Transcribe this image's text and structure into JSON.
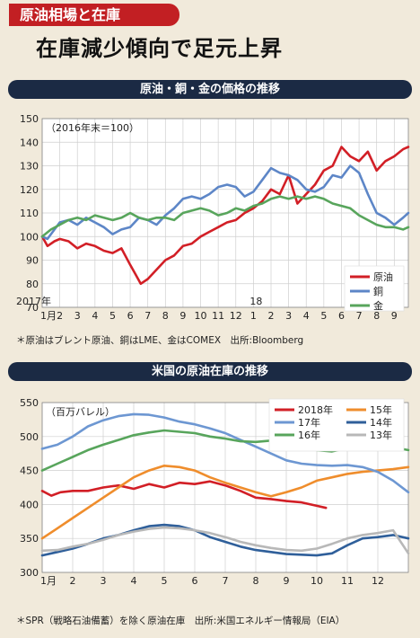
{
  "header": {
    "tag": "原油相場と在庫",
    "headline": "在庫減少傾向で足元上昇"
  },
  "chart_data": [
    {
      "type": "line",
      "title": "原油・銅・金の価格の推移",
      "unit_label": "（2016年末＝100）",
      "ylim": [
        70,
        150
      ],
      "yticks": [
        70,
        80,
        90,
        100,
        110,
        120,
        130,
        140,
        150
      ],
      "x_month_labels": [
        "1月",
        "2",
        "3",
        "4",
        "5",
        "6",
        "7",
        "8",
        "9",
        "10",
        "11",
        "12",
        "1",
        "2",
        "3",
        "4",
        "5",
        "6",
        "7",
        "8",
        "9"
      ],
      "year_labels": [
        "2017年",
        "18"
      ],
      "x_unit": "month index (0 = Jan 2017)",
      "xlim": [
        0,
        20.8
      ],
      "grid": true,
      "legend_position": "bottom-right",
      "note": "＊原油はブレント原油、銅はLME、金はCOMEX　出所:Bloomberg",
      "series": [
        {
          "name": "原油",
          "color": "#d21f26",
          "x": [
            0,
            0.3,
            0.7,
            1,
            1.5,
            2,
            2.5,
            3,
            3.5,
            4,
            4.5,
            5,
            5.3,
            5.6,
            6,
            6.5,
            7,
            7.5,
            8,
            8.5,
            9,
            9.5,
            10,
            10.5,
            11,
            11.5,
            12,
            12.5,
            13,
            13.5,
            14,
            14.5,
            15,
            15.5,
            16,
            16.5,
            17,
            17.5,
            18,
            18.5,
            19,
            19.5,
            20,
            20.5,
            20.8
          ],
          "y": [
            100,
            96,
            98,
            99,
            98,
            95,
            97,
            96,
            94,
            93,
            95,
            88,
            84,
            80,
            82,
            86,
            90,
            92,
            96,
            97,
            100,
            102,
            104,
            106,
            107,
            110,
            112,
            115,
            120,
            118,
            126,
            114,
            118,
            122,
            128,
            130,
            138,
            134,
            132,
            136,
            128,
            132,
            134,
            137,
            138
          ]
        },
        {
          "name": "銅",
          "color": "#5d86c7",
          "x": [
            0,
            0.3,
            0.7,
            1,
            1.5,
            2,
            2.5,
            3,
            3.5,
            4,
            4.5,
            5,
            5.5,
            6,
            6.5,
            7,
            7.5,
            8,
            8.5,
            9,
            9.5,
            10,
            10.5,
            11,
            11.5,
            12,
            12.5,
            13,
            13.5,
            14,
            14.5,
            15,
            15.5,
            16,
            16.5,
            17,
            17.5,
            18,
            18.5,
            19,
            19.5,
            20,
            20.5,
            20.8
          ],
          "y": [
            100,
            99,
            103,
            106,
            107,
            105,
            108,
            106,
            104,
            101,
            103,
            104,
            108,
            107,
            105,
            109,
            112,
            116,
            117,
            116,
            118,
            121,
            122,
            121,
            117,
            119,
            124,
            129,
            127,
            126,
            124,
            120,
            119,
            121,
            126,
            125,
            130,
            127,
            118,
            110,
            108,
            105,
            108,
            110
          ]
        },
        {
          "name": "金",
          "color": "#58a55c",
          "x": [
            0,
            0.5,
            1,
            1.5,
            2,
            2.5,
            3,
            3.5,
            4,
            4.5,
            5,
            5.5,
            6,
            6.5,
            7,
            7.5,
            8,
            8.5,
            9,
            9.5,
            10,
            10.5,
            11,
            11.5,
            12,
            12.5,
            13,
            13.5,
            14,
            14.5,
            15,
            15.5,
            16,
            16.5,
            17,
            17.5,
            18,
            18.5,
            19,
            19.5,
            20,
            20.5,
            20.8
          ],
          "y": [
            100,
            103,
            105,
            107,
            108,
            107,
            109,
            108,
            107,
            108,
            110,
            108,
            107,
            108,
            108,
            107,
            110,
            111,
            112,
            111,
            109,
            110,
            112,
            111,
            113,
            114,
            116,
            117,
            116,
            117,
            116,
            117,
            116,
            114,
            113,
            112,
            109,
            107,
            105,
            104,
            104,
            103,
            104
          ]
        }
      ]
    },
    {
      "type": "line",
      "title": "米国の原油在庫の推移",
      "unit_label": "（百万バレル）",
      "ylim": [
        300,
        550
      ],
      "yticks": [
        300,
        350,
        400,
        450,
        500,
        550
      ],
      "x_month_labels": [
        "1月",
        "2",
        "3",
        "4",
        "5",
        "6",
        "7",
        "8",
        "9",
        "10",
        "11",
        "12"
      ],
      "x_unit": "month index (0 = January)",
      "xlim": [
        0,
        12
      ],
      "grid": true,
      "legend_position": "top-right",
      "note": "＊SPR（戦略石油備蓄）を除く原油在庫　出所:米国エネルギー情報局（EIA）",
      "series": [
        {
          "name": "2018年",
          "color": "#d21f26",
          "x": [
            0,
            0.3,
            0.6,
            1,
            1.5,
            2,
            2.5,
            3,
            3.5,
            4,
            4.5,
            5,
            5.5,
            6,
            6.5,
            7,
            7.5,
            8,
            8.5,
            9,
            9.3
          ],
          "y": [
            420,
            413,
            418,
            420,
            420,
            425,
            428,
            423,
            430,
            425,
            432,
            430,
            434,
            428,
            420,
            410,
            408,
            405,
            403,
            398,
            395
          ]
        },
        {
          "name": "15年",
          "color": "#ef8d2c",
          "x": [
            0,
            0.5,
            1,
            1.5,
            2,
            2.5,
            3,
            3.5,
            4,
            4.5,
            5,
            5.5,
            6,
            6.5,
            7,
            7.5,
            8,
            8.5,
            9,
            9.5,
            10,
            10.5,
            11,
            11.5,
            12
          ],
          "y": [
            350,
            365,
            380,
            395,
            410,
            425,
            440,
            450,
            457,
            455,
            450,
            440,
            432,
            425,
            418,
            412,
            418,
            425,
            435,
            440,
            445,
            448,
            450,
            452,
            455
          ]
        },
        {
          "name": "17年",
          "color": "#6d97d2",
          "x": [
            0,
            0.5,
            1,
            1.5,
            2,
            2.5,
            3,
            3.5,
            4,
            4.5,
            5,
            5.5,
            6,
            6.5,
            7,
            7.5,
            8,
            8.5,
            9,
            9.5,
            10,
            10.5,
            11,
            11.5,
            12
          ],
          "y": [
            482,
            488,
            500,
            515,
            524,
            530,
            533,
            532,
            528,
            522,
            518,
            512,
            505,
            495,
            485,
            475,
            465,
            460,
            458,
            457,
            458,
            455,
            448,
            435,
            418
          ]
        },
        {
          "name": "14年",
          "color": "#2f5f9a",
          "x": [
            0,
            0.5,
            1,
            1.5,
            2,
            2.5,
            3,
            3.5,
            4,
            4.5,
            5,
            5.5,
            6,
            6.5,
            7,
            7.5,
            8,
            8.5,
            9,
            9.5,
            10,
            10.5,
            11,
            11.5,
            12
          ],
          "y": [
            325,
            330,
            335,
            342,
            350,
            355,
            362,
            368,
            370,
            368,
            362,
            352,
            345,
            338,
            333,
            330,
            327,
            326,
            325,
            328,
            340,
            350,
            352,
            355,
            350
          ]
        },
        {
          "name": "16年",
          "color": "#58a55c",
          "x": [
            0,
            0.5,
            1,
            1.5,
            2,
            2.5,
            3,
            3.5,
            4,
            4.5,
            5,
            5.5,
            6,
            6.5,
            7,
            7.5,
            8,
            8.5,
            9,
            9.5,
            10,
            10.5,
            11,
            11.5,
            12
          ],
          "y": [
            450,
            460,
            470,
            480,
            488,
            495,
            502,
            506,
            509,
            507,
            505,
            500,
            497,
            493,
            492,
            494,
            492,
            485,
            480,
            478,
            483,
            488,
            486,
            484,
            480
          ]
        },
        {
          "name": "13年",
          "color": "#b8b8b8",
          "x": [
            0,
            0.5,
            1,
            1.5,
            2,
            2.5,
            3,
            3.5,
            4,
            4.5,
            5,
            5.5,
            6,
            6.5,
            7,
            7.5,
            8,
            8.5,
            9,
            9.5,
            10,
            10.5,
            11,
            11.5,
            12
          ],
          "y": [
            332,
            333,
            338,
            342,
            348,
            355,
            360,
            364,
            366,
            365,
            362,
            358,
            352,
            345,
            340,
            336,
            333,
            332,
            335,
            342,
            350,
            355,
            358,
            362,
            328
          ]
        }
      ]
    }
  ]
}
